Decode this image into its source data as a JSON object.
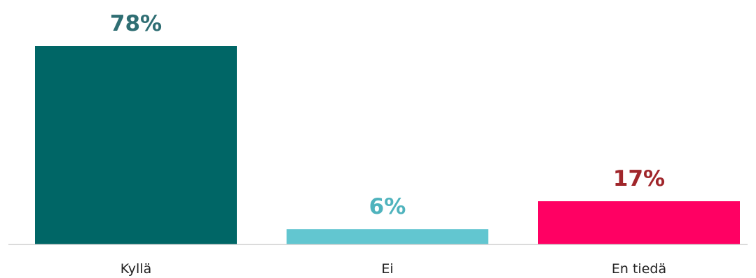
{
  "chart_data": {
    "type": "bar",
    "title": "",
    "xlabel": "",
    "ylabel": "",
    "ylim": [
      0,
      78
    ],
    "grid": false,
    "categories": [
      "Kyllä",
      "Ei",
      "En tiedä"
    ],
    "values": [
      78,
      6,
      17
    ],
    "value_labels": [
      "78%",
      "6%",
      "17%"
    ],
    "bar_colors": [
      "#006666",
      "#62C6D0",
      "#FF0063"
    ],
    "label_colors": [
      "#2F6E73",
      "#4FB3BD",
      "#A0262B"
    ]
  }
}
